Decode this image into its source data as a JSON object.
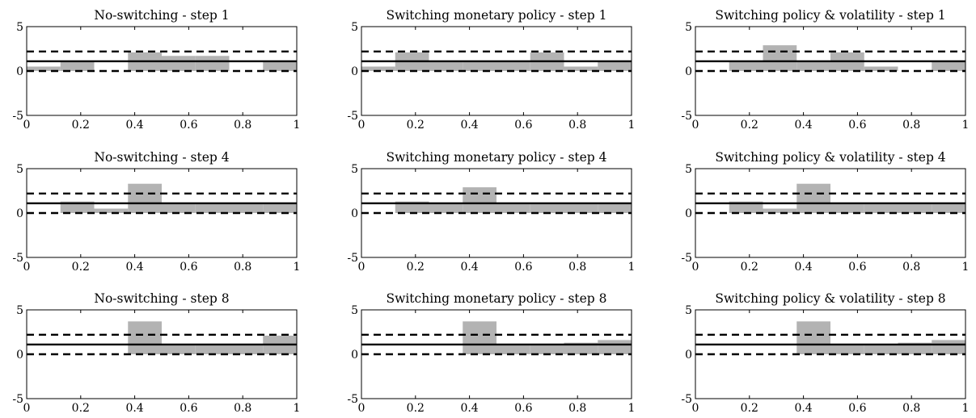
{
  "chart_data": [
    {
      "type": "bar",
      "title": "No-switching - step 1",
      "x": [
        0.0625,
        0.1875,
        0.3125,
        0.4375,
        0.5625,
        0.6875,
        0.8125,
        0.9375
      ],
      "values": [
        0.5,
        1.1,
        0.0,
        2.1,
        1.7,
        1.7,
        0.0,
        1.1
      ],
      "reference_lines": [
        1.1,
        2.2,
        0.0
      ],
      "xlim": [
        0,
        1
      ],
      "ylim": [
        -5,
        5
      ],
      "xticks": [
        "0",
        "0.2",
        "0.4",
        "0.6",
        "0.8",
        "1"
      ],
      "yticks": [
        "-5",
        "0",
        "5"
      ]
    },
    {
      "type": "bar",
      "title": "Switching monetary policy - step 1",
      "x": [
        0.0625,
        0.1875,
        0.3125,
        0.4375,
        0.5625,
        0.6875,
        0.8125,
        0.9375
      ],
      "values": [
        0.5,
        2.1,
        1.1,
        1.1,
        1.1,
        2.1,
        0.5,
        1.1
      ],
      "reference_lines": [
        1.1,
        2.2,
        0.0
      ],
      "xlim": [
        0,
        1
      ],
      "ylim": [
        -5,
        5
      ],
      "xticks": [
        "0",
        "0.2",
        "0.4",
        "0.6",
        "0.8",
        "1"
      ],
      "yticks": [
        "-5",
        "0",
        "5"
      ]
    },
    {
      "type": "bar",
      "title": "Switching policy & volatility - step 1",
      "x": [
        0.0625,
        0.1875,
        0.3125,
        0.4375,
        0.5625,
        0.6875,
        0.8125,
        0.9375
      ],
      "values": [
        0.0,
        1.1,
        2.9,
        1.1,
        2.1,
        0.5,
        0.0,
        1.1
      ],
      "reference_lines": [
        1.1,
        2.2,
        0.0
      ],
      "xlim": [
        0,
        1
      ],
      "ylim": [
        -5,
        5
      ],
      "xticks": [
        "0",
        "0.2",
        "0.4",
        "0.6",
        "0.8",
        "1"
      ],
      "yticks": [
        "-5",
        "0",
        "5"
      ]
    },
    {
      "type": "bar",
      "title": "No-switching - step 4",
      "x": [
        0.0625,
        0.1875,
        0.3125,
        0.4375,
        0.5625,
        0.6875,
        0.8125,
        0.9375
      ],
      "values": [
        0.0,
        1.3,
        0.5,
        3.3,
        1.1,
        1.1,
        1.1,
        1.1
      ],
      "reference_lines": [
        1.1,
        2.2,
        0.0
      ],
      "xlim": [
        0,
        1
      ],
      "ylim": [
        -5,
        5
      ],
      "xticks": [
        "0",
        "0.2",
        "0.4",
        "0.6",
        "0.8",
        "1"
      ],
      "yticks": [
        "-5",
        "0",
        "5"
      ]
    },
    {
      "type": "bar",
      "title": "Switching monetary policy - step 4",
      "x": [
        0.0625,
        0.1875,
        0.3125,
        0.4375,
        0.5625,
        0.6875,
        0.8125,
        0.9375
      ],
      "values": [
        0.0,
        1.3,
        1.1,
        2.9,
        1.1,
        1.1,
        1.1,
        1.1
      ],
      "reference_lines": [
        1.1,
        2.2,
        0.0
      ],
      "xlim": [
        0,
        1
      ],
      "ylim": [
        -5,
        5
      ],
      "xticks": [
        "0",
        "0.2",
        "0.4",
        "0.6",
        "0.8",
        "1"
      ],
      "yticks": [
        "-5",
        "0",
        "5"
      ]
    },
    {
      "type": "bar",
      "title": "Switching policy & volatility - step 4",
      "x": [
        0.0625,
        0.1875,
        0.3125,
        0.4375,
        0.5625,
        0.6875,
        0.8125,
        0.9375
      ],
      "values": [
        0.0,
        1.3,
        0.5,
        3.3,
        1.1,
        1.1,
        1.1,
        1.1
      ],
      "reference_lines": [
        1.1,
        2.2,
        0.0
      ],
      "xlim": [
        0,
        1
      ],
      "ylim": [
        -5,
        5
      ],
      "xticks": [
        "0",
        "0.2",
        "0.4",
        "0.6",
        "0.8",
        "1"
      ],
      "yticks": [
        "-5",
        "0",
        "5"
      ]
    },
    {
      "type": "bar",
      "title": "No-switching - step 8",
      "x": [
        0.0625,
        0.1875,
        0.3125,
        0.4375,
        0.5625,
        0.6875,
        0.8125,
        0.9375
      ],
      "values": [
        0.0,
        0.0,
        0.0,
        3.7,
        1.1,
        1.1,
        1.1,
        2.1
      ],
      "reference_lines": [
        1.1,
        2.2,
        0.0
      ],
      "xlim": [
        0,
        1
      ],
      "ylim": [
        -5,
        5
      ],
      "xticks": [
        "0",
        "0.2",
        "0.4",
        "0.6",
        "0.8",
        "1"
      ],
      "yticks": [
        "-5",
        "0",
        "5"
      ]
    },
    {
      "type": "bar",
      "title": "Switching monetary policy - step 8",
      "x": [
        0.0625,
        0.1875,
        0.3125,
        0.4375,
        0.5625,
        0.6875,
        0.8125,
        0.9375
      ],
      "values": [
        0.0,
        0.0,
        0.0,
        3.7,
        1.1,
        1.1,
        1.3,
        1.6
      ],
      "reference_lines": [
        1.1,
        2.2,
        0.0
      ],
      "xlim": [
        0,
        1
      ],
      "ylim": [
        -5,
        5
      ],
      "xticks": [
        "0",
        "0.2",
        "0.4",
        "0.6",
        "0.8",
        "1"
      ],
      "yticks": [
        "-5",
        "0",
        "5"
      ]
    },
    {
      "type": "bar",
      "title": "Switching policy & volatility - step 8",
      "x": [
        0.0625,
        0.1875,
        0.3125,
        0.4375,
        0.5625,
        0.6875,
        0.8125,
        0.9375
      ],
      "values": [
        0.0,
        0.0,
        0.0,
        3.7,
        1.1,
        1.1,
        1.3,
        1.6
      ],
      "reference_lines": [
        1.1,
        2.2,
        0.0
      ],
      "xlim": [
        0,
        1
      ],
      "ylim": [
        -5,
        5
      ],
      "xticks": [
        "0",
        "0.2",
        "0.4",
        "0.6",
        "0.8",
        "1"
      ],
      "yticks": [
        "-5",
        "0",
        "5"
      ]
    }
  ],
  "colors": {
    "bar": "#b3b3b3",
    "line": "#000000",
    "dashed": "#000000",
    "axis": "#000000"
  }
}
